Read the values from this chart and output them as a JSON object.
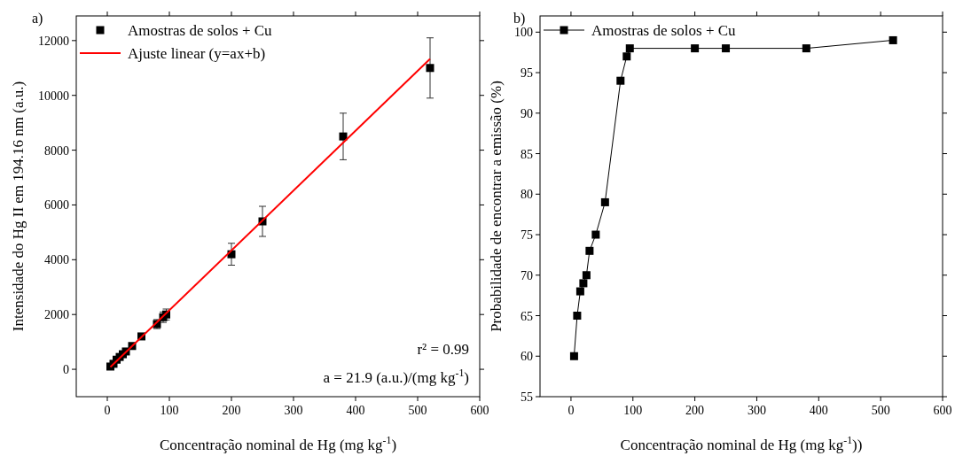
{
  "chart_data": [
    {
      "type": "scatter",
      "title": "a)",
      "xlabel": "Concentração nominal de Hg (mg kg$^{-1}$)",
      "ylabel": "Intensidade do Hg II em 194.16 nm (a.u.)",
      "xlim": [
        -50,
        600
      ],
      "xticks": [
        0,
        100,
        200,
        300,
        400,
        500,
        600
      ],
      "ylim": [
        -1000,
        12900
      ],
      "yticks": [
        0,
        2000,
        4000,
        6000,
        8000,
        10000,
        12000
      ],
      "legend": "top left",
      "annotations": [
        "r² = 0.99",
        "a = 21.9 (a.u.)/(mg kg$^{-1}$)"
      ],
      "series": [
        {
          "name": "Amostras de solos + Cu",
          "type": "scatter",
          "color": "#000000",
          "x": [
            5,
            10,
            15,
            20,
            25,
            30,
            40,
            55,
            80,
            90,
            95,
            200,
            250,
            380,
            520
          ],
          "values": [
            100,
            200,
            350,
            450,
            550,
            650,
            850,
            1200,
            1650,
            1900,
            2000,
            4200,
            5400,
            8500,
            11000
          ],
          "errors": [
            null,
            null,
            null,
            null,
            null,
            null,
            null,
            null,
            165,
            190,
            200,
            400,
            550,
            850,
            1100
          ],
          "marker": "square"
        },
        {
          "name": "Ajuste linear (y=ax+b)",
          "type": "line",
          "color": "#ff0000",
          "x": [
            5,
            520
          ],
          "values": [
            80,
            11330
          ],
          "marker": "none"
        }
      ]
    },
    {
      "type": "line",
      "title": "b)",
      "xlabel": "Concentração nominal de Hg (mg kg$^{-1}$))",
      "ylabel": "Probabilidade de encontrar a emissão (%)",
      "xlim": [
        -50,
        600
      ],
      "xticks": [
        0,
        100,
        200,
        300,
        400,
        500,
        600
      ],
      "ylim": [
        55,
        102
      ],
      "yticks": [
        55,
        60,
        65,
        70,
        75,
        80,
        85,
        90,
        95,
        100
      ],
      "legend": "top left",
      "marker": "square",
      "series": [
        {
          "name": "Amostras de solos + Cu",
          "color": "#000000",
          "x": [
            5,
            10,
            15,
            20,
            25,
            30,
            40,
            55,
            80,
            90,
            95,
            200,
            250,
            380,
            520
          ],
          "values": [
            60,
            65,
            68,
            69,
            70,
            73,
            75,
            79,
            94,
            97,
            98,
            98,
            98,
            98,
            99
          ]
        }
      ]
    }
  ]
}
